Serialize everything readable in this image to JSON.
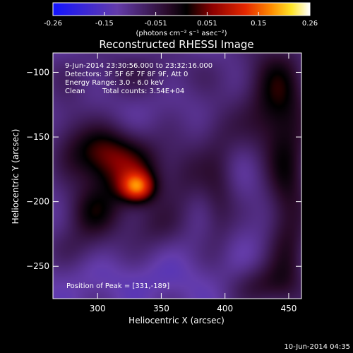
{
  "chart_data": {
    "type": "heatmap",
    "title": "Reconstructed RHESSI Image",
    "xlabel": "Heliocentric X (arcsec)",
    "ylabel": "Heliocentric Y (arcsec)",
    "xlim": [
      265,
      460
    ],
    "ylim": [
      -275,
      -85
    ],
    "xticks": [
      300,
      350,
      400,
      450
    ],
    "yticks": [
      -100,
      -150,
      -200,
      -250
    ],
    "colorbar": {
      "range": [
        -0.26,
        0.26
      ],
      "tick_labels": [
        "-0.26",
        "-0.15",
        "-0.051",
        "0.051",
        "0.15",
        "0.26"
      ],
      "unit_label": "(photons cm⁻² s⁻¹ asec⁻²)"
    },
    "annotations": [
      "9-Jun-2014 23:30:56.000 to 23:32:16.000",
      "Detectors: 3F 5F 6F 7F 8F 9F, Att 0",
      "Energy Range: 3.0 - 6.0 keV",
      "Clean",
      "Total counts: 3.54E+04"
    ],
    "peak_label": "Position of Peak = [331,-189]",
    "peak": {
      "x": 331,
      "y": -189,
      "value": 0.26
    },
    "blobs": [
      {
        "x": 331,
        "y": -189,
        "sx": 9,
        "sy": 8,
        "a": 0.19
      },
      {
        "x": 320,
        "y": -175,
        "sx": 26,
        "sy": 20,
        "a": 0.14
      },
      {
        "x": 300,
        "y": -160,
        "sx": 18,
        "sy": 14,
        "a": 0.08
      },
      {
        "x": 295,
        "y": -210,
        "sx": 16,
        "sy": 14,
        "a": 0.09
      },
      {
        "x": 345,
        "y": -220,
        "sx": 18,
        "sy": 14,
        "a": 0.06
      },
      {
        "x": 370,
        "y": -180,
        "sx": 12,
        "sy": 18,
        "a": 0.05
      },
      {
        "x": 395,
        "y": -200,
        "sx": 10,
        "sy": 26,
        "a": 0.07
      },
      {
        "x": 440,
        "y": -120,
        "sx": 18,
        "sy": 35,
        "a": 0.12
      },
      {
        "x": 450,
        "y": -210,
        "sx": 12,
        "sy": 50,
        "a": 0.1
      },
      {
        "x": 430,
        "y": -265,
        "sx": 18,
        "sy": 12,
        "a": 0.08
      },
      {
        "x": 330,
        "y": -100,
        "sx": 45,
        "sy": 14,
        "a": 0.05
      },
      {
        "x": 395,
        "y": -145,
        "sx": 14,
        "sy": 18,
        "a": 0.05
      },
      {
        "x": 285,
        "y": -235,
        "sx": 20,
        "sy": 12,
        "a": 0.04
      },
      {
        "x": 275,
        "y": -140,
        "sx": 12,
        "sy": 20,
        "a": 0.04
      },
      {
        "x": 340,
        "y": -260,
        "sx": 40,
        "sy": 10,
        "a": -0.02
      }
    ],
    "base_level": -0.12
  },
  "footer": {
    "timestamp": "10-Jun-2014 04:35"
  }
}
